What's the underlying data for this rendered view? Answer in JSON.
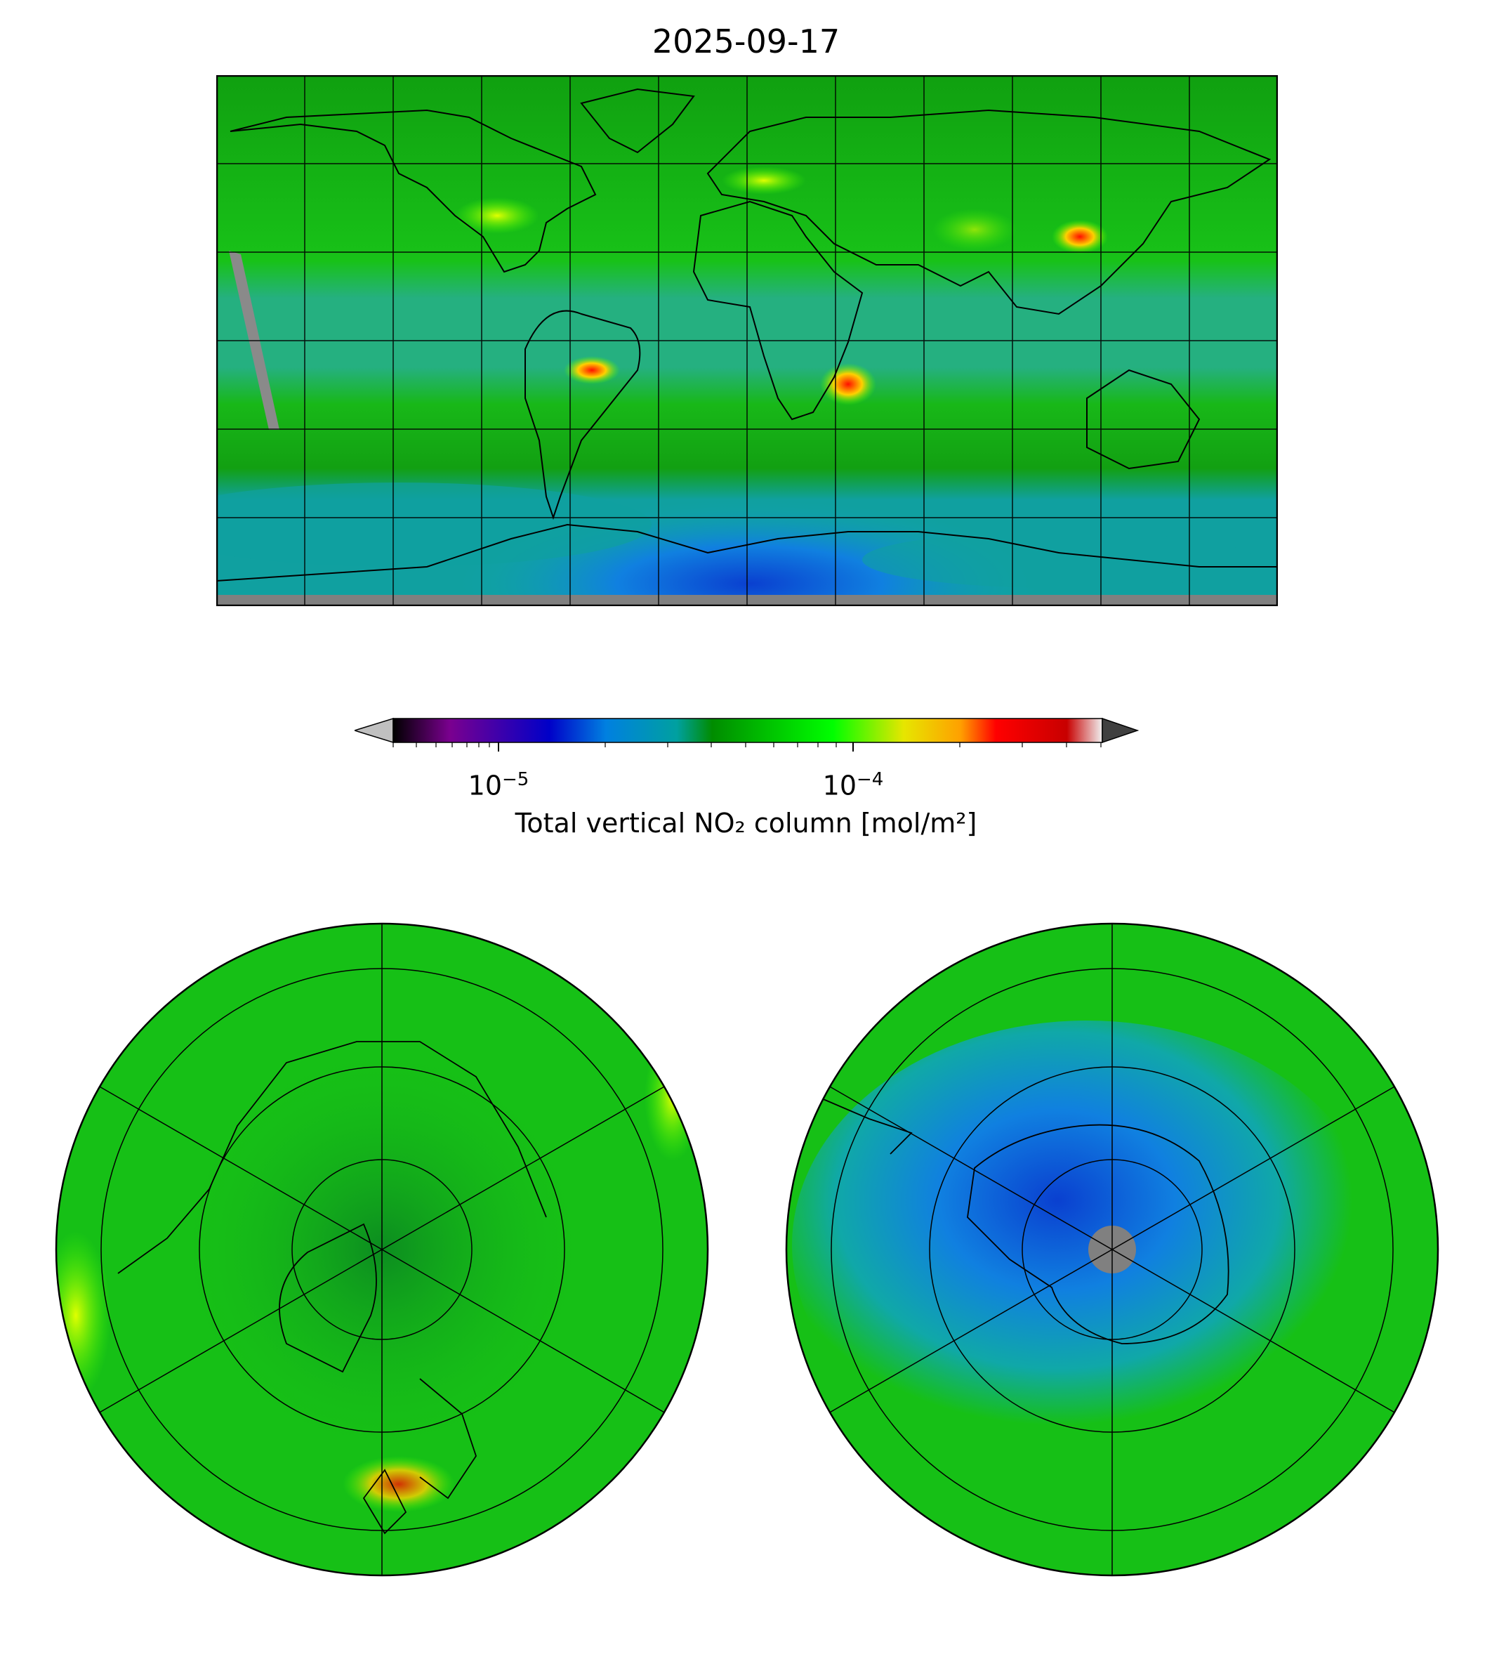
{
  "title": "2025-09-17",
  "colorbar": {
    "label": "Total vertical NO₂ column [mol/m²]",
    "scale": "log",
    "major_ticks": [
      {
        "value": 1e-05,
        "base": "10",
        "exponent": "−5"
      },
      {
        "value": 0.0001,
        "base": "10",
        "exponent": "−4"
      }
    ],
    "range": [
      5e-06,
      0.0005
    ],
    "extend": "both",
    "under_color": "#c0c0c0",
    "over_color": "#404040",
    "stops": [
      "#000000",
      "#7a008f",
      "#0000c8",
      "#0080e0",
      "#00a0a0",
      "#008c00",
      "#00ff00",
      "#e6e600",
      "#ffa000",
      "#ff0000",
      "#c80000",
      "#f0f0f0"
    ]
  },
  "maps": {
    "global": {
      "projection": "equirectangular",
      "background_color": "#10b010",
      "missing_color": "#808080"
    },
    "arctic": {
      "projection": "north-polar-stereographic",
      "background_color": "#10b010"
    },
    "antarctic": {
      "projection": "south-polar-stereographic",
      "background_color": "#10b010",
      "missing_color": "#808080"
    }
  },
  "colors": {
    "green_base": "#0fbf10",
    "green_dark": "#0a9e0e",
    "teal": "#0fa0a0",
    "blue": "#1070e0",
    "hotspot": "#ff2000",
    "missing": "#808080"
  }
}
